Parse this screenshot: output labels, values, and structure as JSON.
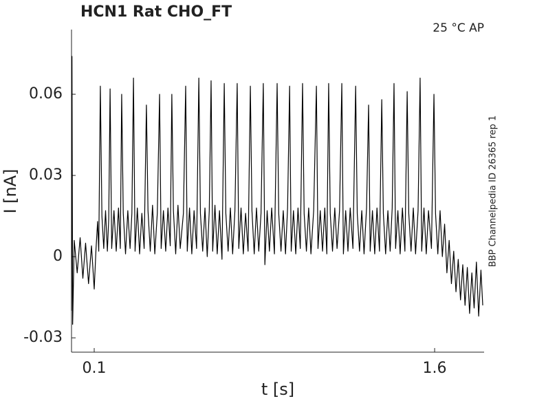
{
  "chart_data": {
    "type": "line",
    "title": "HCN1  Rat  CHO_FT",
    "annotation": "25 °C  AP",
    "side_label": "BBP Channelpedia ID 26365 rep 1",
    "xlabel": "t [s]",
    "ylabel": "I [nA]",
    "color": "#000000",
    "xlim": [
      0,
      1.818
    ],
    "ylim": [
      -0.0353,
      0.0839
    ],
    "xticks": [
      0.1,
      1.6
    ],
    "yticks": [
      -0.03,
      0,
      0.03,
      0.06
    ],
    "x": [
      0,
      0.002,
      0.005,
      0.012,
      0.025,
      0.038,
      0.05,
      0.062,
      0.075,
      0.088,
      0.1,
      0.108,
      0.115,
      0.12,
      0.127,
      0.134,
      0.142,
      0.15,
      0.158,
      0.164,
      0.17,
      0.177,
      0.187,
      0.197,
      0.207,
      0.215,
      0.221,
      0.228,
      0.238,
      0.248,
      0.258,
      0.266,
      0.273,
      0.28,
      0.29,
      0.3,
      0.31,
      0.32,
      0.33,
      0.337,
      0.347,
      0.357,
      0.367,
      0.378,
      0.388,
      0.395,
      0.405,
      0.415,
      0.425,
      0.435,
      0.442,
      0.449,
      0.459,
      0.469,
      0.479,
      0.493,
      0.503,
      0.51,
      0.52,
      0.53,
      0.54,
      0.551,
      0.561,
      0.568,
      0.578,
      0.588,
      0.598,
      0.607,
      0.615,
      0.622,
      0.632,
      0.642,
      0.652,
      0.663,
      0.673,
      0.68,
      0.69,
      0.7,
      0.71,
      0.72,
      0.73,
      0.737,
      0.747,
      0.757,
      0.767,
      0.778,
      0.788,
      0.795,
      0.805,
      0.815,
      0.825,
      0.835,
      0.845,
      0.852,
      0.862,
      0.872,
      0.882,
      0.894,
      0.906,
      0.913,
      0.923,
      0.933,
      0.943,
      0.952,
      0.961,
      0.968,
      0.978,
      0.988,
      0.998,
      1.008,
      1.018,
      1.025,
      1.035,
      1.045,
      1.055,
      1.067,
      1.079,
      1.086,
      1.096,
      1.106,
      1.116,
      1.125,
      1.133,
      1.14,
      1.15,
      1.16,
      1.17,
      1.181,
      1.191,
      1.198,
      1.208,
      1.218,
      1.228,
      1.24,
      1.252,
      1.259,
      1.269,
      1.279,
      1.289,
      1.3,
      1.309,
      1.316,
      1.326,
      1.336,
      1.346,
      1.357,
      1.367,
      1.374,
      1.384,
      1.394,
      1.404,
      1.413,
      1.421,
      1.428,
      1.438,
      1.448,
      1.458,
      1.469,
      1.479,
      1.486,
      1.496,
      1.506,
      1.516,
      1.527,
      1.536,
      1.543,
      1.553,
      1.563,
      1.573,
      1.586,
      1.597,
      1.604,
      1.614,
      1.624,
      1.634,
      1.644,
      1.654,
      1.664,
      1.674,
      1.684,
      1.694,
      1.704,
      1.714,
      1.724,
      1.734,
      1.744,
      1.754,
      1.764,
      1.774,
      1.784,
      1.794,
      1.804,
      1.812
    ],
    "values": [
      -0.02,
      0.074,
      -0.025,
      0.006,
      -0.006,
      0.007,
      -0.008,
      0.005,
      -0.01,
      0.004,
      -0.012,
      0.003,
      0.013,
      0.002,
      0.063,
      0.015,
      0.003,
      0.017,
      0.002,
      0.014,
      0.062,
      0.003,
      0.017,
      0.002,
      0.018,
      0.003,
      0.06,
      0.016,
      0.001,
      0.017,
      0.003,
      0.016,
      0.066,
      0.002,
      0.018,
      0.001,
      0.016,
      0.003,
      0.056,
      0.017,
      0.002,
      0.019,
      0.001,
      0.016,
      0.06,
      0.003,
      0.017,
      0.002,
      0.018,
      0.004,
      0.06,
      0.017,
      0.001,
      0.019,
      0.003,
      0.016,
      0.063,
      0.002,
      0.018,
      0.001,
      0.017,
      0.003,
      0.066,
      0.016,
      0.002,
      0.018,
      0.0,
      0.017,
      0.065,
      0.002,
      0.019,
      0.001,
      0.017,
      -0.001,
      0.064,
      0.016,
      0.002,
      0.018,
      0.001,
      0.017,
      0.064,
      0.003,
      0.018,
      0.001,
      0.016,
      0.002,
      0.063,
      0.017,
      0.001,
      0.018,
      0.002,
      0.016,
      0.064,
      -0.003,
      0.017,
      0.002,
      0.018,
      0.001,
      0.064,
      0.016,
      0.002,
      0.017,
      0.001,
      0.018,
      0.063,
      0.002,
      0.017,
      0.001,
      0.018,
      0.003,
      0.064,
      0.016,
      0.002,
      0.018,
      0.001,
      0.017,
      0.063,
      0.003,
      0.017,
      0.002,
      0.018,
      0.001,
      0.064,
      0.016,
      0.002,
      0.018,
      0.003,
      0.017,
      0.064,
      0.001,
      0.017,
      0.002,
      0.018,
      0.003,
      0.063,
      0.016,
      0.002,
      0.017,
      0.001,
      0.018,
      0.056,
      0.002,
      0.017,
      0.001,
      0.018,
      0.002,
      0.058,
      0.016,
      0.001,
      0.017,
      0.002,
      0.018,
      0.064,
      0.003,
      0.017,
      0.001,
      0.018,
      0.002,
      0.061,
      0.016,
      0.002,
      0.018,
      0.001,
      0.017,
      0.066,
      0.002,
      0.018,
      0.001,
      0.017,
      0.003,
      0.06,
      0.016,
      0.001,
      0.017,
      0.0,
      0.012,
      -0.006,
      0.006,
      -0.01,
      0.002,
      -0.013,
      -0.001,
      -0.016,
      -0.003,
      -0.018,
      -0.004,
      -0.021,
      -0.006,
      -0.019,
      -0.002,
      -0.022,
      -0.005,
      -0.018
    ]
  }
}
